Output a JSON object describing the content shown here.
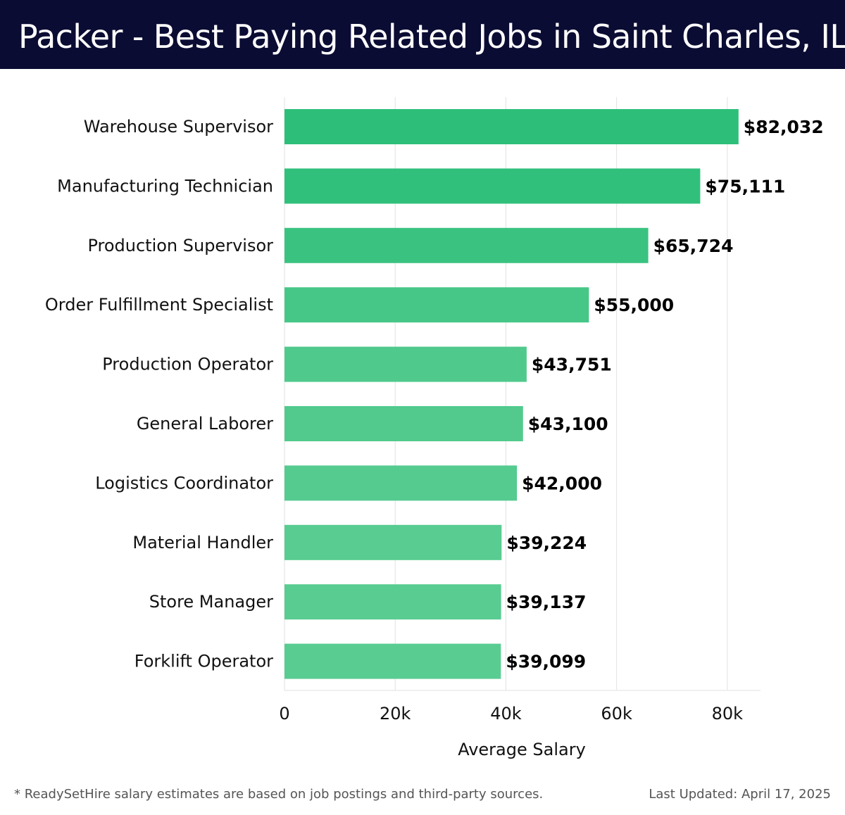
{
  "header": {
    "title": "Packer - Best Paying Related Jobs in Saint Charles, IL"
  },
  "chart_data": {
    "type": "bar",
    "orientation": "horizontal",
    "title": "Packer - Best Paying Related Jobs in Saint Charles, IL",
    "xlabel": "Average Salary",
    "ylabel": "",
    "xlim": [
      0,
      86000
    ],
    "x_ticks": [
      0,
      20000,
      40000,
      60000,
      80000
    ],
    "x_tick_labels": [
      "0",
      "20k",
      "40k",
      "60k",
      "80k"
    ],
    "grid": "vertical",
    "categories": [
      "Warehouse Supervisor",
      "Manufacturing Technician",
      "Production Supervisor",
      "Order Fulfillment Specialist",
      "Production Operator",
      "General Laborer",
      "Logistics Coordinator",
      "Material Handler",
      "Store Manager",
      "Forklift Operator"
    ],
    "values": [
      82032,
      75111,
      65724,
      55000,
      43751,
      43100,
      42000,
      39224,
      39137,
      39099
    ],
    "value_labels": [
      "$82,032",
      "$75,111",
      "$65,724",
      "$55,000",
      "$43,751",
      "$43,100",
      "$42,000",
      "$39,224",
      "$39,137",
      "$39,099"
    ],
    "bar_colors": [
      "#2dbf79",
      "#30c07b",
      "#3ac380",
      "#47c787",
      "#50ca8c",
      "#52ca8d",
      "#55cb8f",
      "#58cc91",
      "#58cc91",
      "#59cc92"
    ]
  },
  "footer": {
    "note": "* ReadySetHire salary estimates are based on job postings and third-party sources.",
    "updated": "Last Updated: April 17, 2025"
  }
}
